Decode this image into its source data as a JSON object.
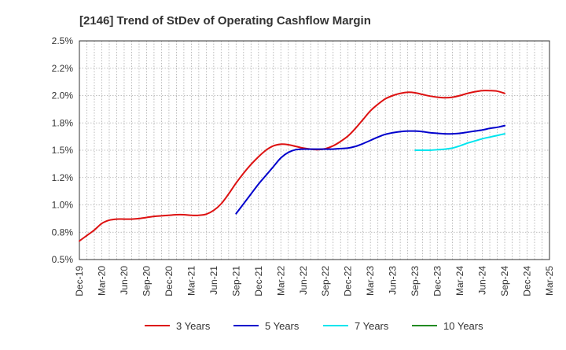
{
  "chart_data": {
    "type": "line",
    "title": "[2146]  Trend of StDev of Operating Cashflow Margin",
    "xlabel": "",
    "ylabel": "",
    "ylim": [
      0.5,
      2.5
    ],
    "yticks": [
      0.5,
      0.75,
      1.0,
      1.25,
      1.5,
      1.75,
      2.0,
      2.25,
      2.5
    ],
    "ytick_labels": [
      "0.5%",
      "0.8%",
      "1.0%",
      "1.2%",
      "1.5%",
      "1.8%",
      "2.0%",
      "2.2%",
      "2.5%"
    ],
    "xlim": [
      "Dec-19",
      "Mar-25"
    ],
    "xtick_labels": [
      "Dec-19",
      "Mar-20",
      "Jun-20",
      "Sep-20",
      "Dec-20",
      "Mar-21",
      "Jun-21",
      "Sep-21",
      "Dec-21",
      "Mar-22",
      "Jun-22",
      "Sep-22",
      "Dec-22",
      "Mar-23",
      "Jun-23",
      "Sep-23",
      "Dec-23",
      "Mar-24",
      "Jun-24",
      "Sep-24",
      "Dec-24",
      "Mar-25"
    ],
    "grid": true,
    "legend_position": "bottom",
    "series": [
      {
        "name": "3 Years",
        "color": "#dd1111",
        "points": [
          [
            "Dec-19",
            0.67
          ],
          [
            "Jan-20",
            0.72
          ],
          [
            "Feb-20",
            0.77
          ],
          [
            "Mar-20",
            0.83
          ],
          [
            "Apr-20",
            0.86
          ],
          [
            "May-20",
            0.87
          ],
          [
            "Jun-20",
            0.87
          ],
          [
            "Jul-20",
            0.87
          ],
          [
            "Aug-20",
            0.875
          ],
          [
            "Sep-20",
            0.885
          ],
          [
            "Oct-20",
            0.895
          ],
          [
            "Nov-20",
            0.9
          ],
          [
            "Dec-20",
            0.905
          ],
          [
            "Jan-21",
            0.91
          ],
          [
            "Feb-21",
            0.91
          ],
          [
            "Mar-21",
            0.905
          ],
          [
            "Apr-21",
            0.905
          ],
          [
            "May-21",
            0.915
          ],
          [
            "Jun-21",
            0.95
          ],
          [
            "Jul-21",
            1.01
          ],
          [
            "Aug-21",
            1.1
          ],
          [
            "Sep-21",
            1.2
          ],
          [
            "Oct-21",
            1.29
          ],
          [
            "Nov-21",
            1.37
          ],
          [
            "Dec-21",
            1.44
          ],
          [
            "Jan-22",
            1.5
          ],
          [
            "Feb-22",
            1.54
          ],
          [
            "Mar-22",
            1.555
          ],
          [
            "Apr-22",
            1.55
          ],
          [
            "May-22",
            1.535
          ],
          [
            "Jun-22",
            1.52
          ],
          [
            "Jul-22",
            1.51
          ],
          [
            "Aug-22",
            1.505
          ],
          [
            "Sep-22",
            1.515
          ],
          [
            "Oct-22",
            1.54
          ],
          [
            "Nov-22",
            1.58
          ],
          [
            "Dec-22",
            1.63
          ],
          [
            "Jan-23",
            1.7
          ],
          [
            "Feb-23",
            1.78
          ],
          [
            "Mar-23",
            1.86
          ],
          [
            "Apr-23",
            1.92
          ],
          [
            "May-23",
            1.97
          ],
          [
            "Jun-23",
            2.0
          ],
          [
            "Jul-23",
            2.02
          ],
          [
            "Aug-23",
            2.03
          ],
          [
            "Sep-23",
            2.025
          ],
          [
            "Oct-23",
            2.01
          ],
          [
            "Nov-23",
            1.995
          ],
          [
            "Dec-23",
            1.985
          ],
          [
            "Jan-24",
            1.98
          ],
          [
            "Feb-24",
            1.985
          ],
          [
            "Mar-24",
            2.0
          ],
          [
            "Apr-24",
            2.02
          ],
          [
            "May-24",
            2.035
          ],
          [
            "Jun-24",
            2.045
          ],
          [
            "Jul-24",
            2.045
          ],
          [
            "Aug-24",
            2.04
          ],
          [
            "Sep-24",
            2.02
          ]
        ]
      },
      {
        "name": "5 Years",
        "color": "#0000cc",
        "points": [
          [
            "Dec-21-3",
            0.92
          ],
          [
            "Oct-21",
            1.01
          ],
          [
            "Nov-21",
            1.1
          ],
          [
            "Dec-21",
            1.19
          ],
          [
            "Jan-22",
            1.27
          ],
          [
            "Feb-22",
            1.35
          ],
          [
            "Mar-22",
            1.43
          ],
          [
            "Apr-22",
            1.48
          ],
          [
            "May-22",
            1.505
          ],
          [
            "Jun-22",
            1.51
          ],
          [
            "Jul-22",
            1.51
          ],
          [
            "Aug-22",
            1.51
          ],
          [
            "Sep-22",
            1.51
          ],
          [
            "Oct-22",
            1.51
          ],
          [
            "Nov-22",
            1.515
          ],
          [
            "Dec-22",
            1.52
          ],
          [
            "Jan-23",
            1.535
          ],
          [
            "Feb-23",
            1.56
          ],
          [
            "Mar-23",
            1.59
          ],
          [
            "Apr-23",
            1.62
          ],
          [
            "May-23",
            1.645
          ],
          [
            "Jun-23",
            1.66
          ],
          [
            "Jul-23",
            1.67
          ],
          [
            "Aug-23",
            1.675
          ],
          [
            "Sep-23",
            1.675
          ],
          [
            "Oct-23",
            1.67
          ],
          [
            "Nov-23",
            1.66
          ],
          [
            "Dec-23",
            1.655
          ],
          [
            "Jan-24",
            1.65
          ],
          [
            "Feb-24",
            1.65
          ],
          [
            "Mar-24",
            1.655
          ],
          [
            "Apr-24",
            1.665
          ],
          [
            "May-24",
            1.675
          ],
          [
            "Jun-24",
            1.685
          ],
          [
            "Jul-24",
            1.7
          ],
          [
            "Aug-24",
            1.71
          ],
          [
            "Sep-24",
            1.725
          ]
        ]
      },
      {
        "name": "7 Years",
        "color": "#00e5ee",
        "points": [
          [
            "Sep-23",
            1.5
          ],
          [
            "Oct-23",
            1.5
          ],
          [
            "Nov-23",
            1.5
          ],
          [
            "Dec-23",
            1.505
          ],
          [
            "Jan-24",
            1.51
          ],
          [
            "Feb-24",
            1.52
          ],
          [
            "Mar-24",
            1.54
          ],
          [
            "Apr-24",
            1.565
          ],
          [
            "May-24",
            1.585
          ],
          [
            "Jun-24",
            1.605
          ],
          [
            "Jul-24",
            1.62
          ],
          [
            "Aug-24",
            1.635
          ],
          [
            "Sep-24",
            1.65
          ]
        ]
      },
      {
        "name": "10 Years",
        "color": "#228b22",
        "points": []
      }
    ]
  }
}
